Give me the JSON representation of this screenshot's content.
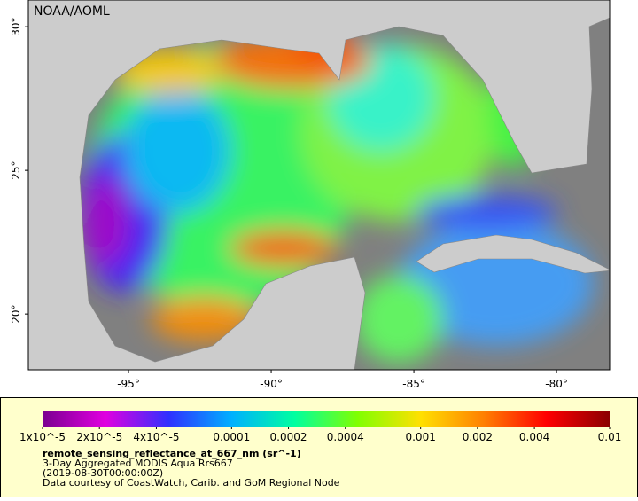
{
  "map": {
    "source_label": "NOAA/AOML",
    "xlim": [
      -98.51,
      -78.14
    ],
    "ylim": [
      18.06,
      30.93
    ],
    "xticks": [
      {
        "value": -95,
        "label": "-95°"
      },
      {
        "value": -90,
        "label": "-90°"
      },
      {
        "value": -85,
        "label": "-85°"
      },
      {
        "value": -80,
        "label": "-80°"
      }
    ],
    "yticks": [
      {
        "value": 20,
        "label": "20°"
      },
      {
        "value": 25,
        "label": "25°"
      },
      {
        "value": 30,
        "label": "30°"
      }
    ]
  },
  "colorbar": {
    "scale": "log",
    "lim": [
      1e-05,
      0.01
    ],
    "colormap": [
      "#7a0090",
      "#e000e0",
      "#3030ff",
      "#00b0ff",
      "#00ffa0",
      "#80ff00",
      "#ffe000",
      "#ff8000",
      "#ff0000",
      "#8b0000"
    ],
    "ticks": [
      {
        "value": 1e-05,
        "label": "1x10^-5"
      },
      {
        "value": 2e-05,
        "label": "2x10^-5"
      },
      {
        "value": 4e-05,
        "label": "4x10^-5"
      },
      0.0001,
      0.0002,
      0.0004,
      0.001,
      0.002,
      0.004,
      0.01
    ]
  },
  "legend": {
    "title": "remote_sensing_reflectance_at_667_nm (sr^-1)",
    "lines": [
      "3-Day Aggregated MODIS Aqua Rrs667",
      "(2019-08-30T00:00:00Z)",
      "Data courtesy of CoastWatch, Carib. and GoM Regional Node"
    ]
  }
}
